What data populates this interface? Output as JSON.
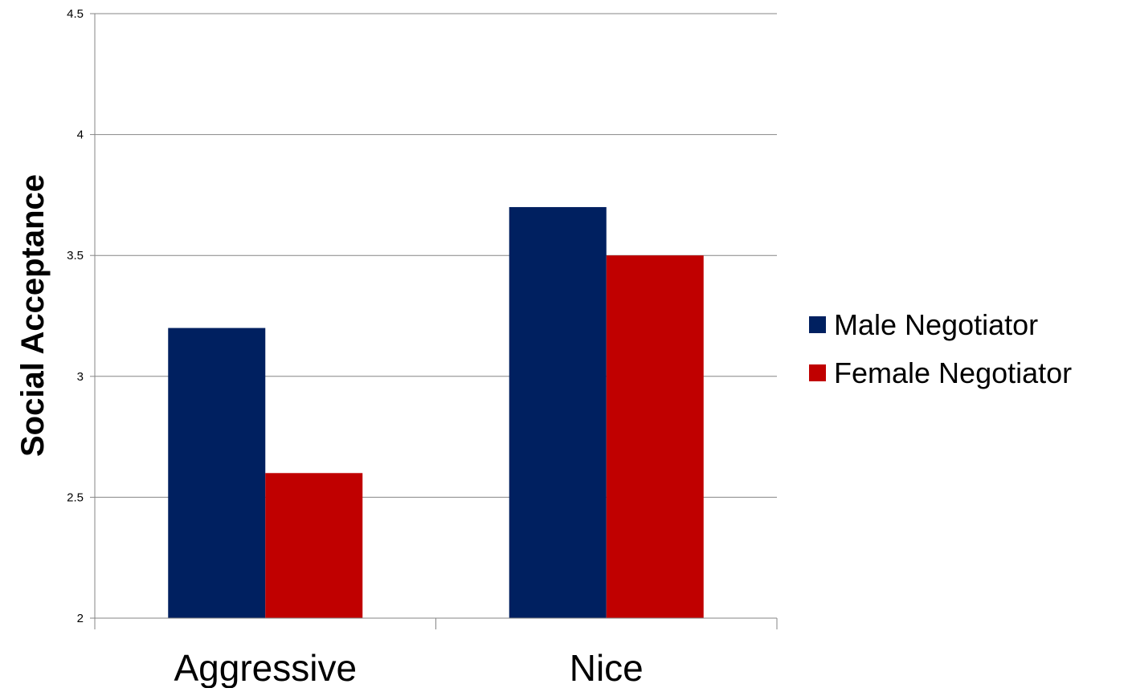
{
  "chart_data": {
    "type": "bar",
    "title": "",
    "xlabel": "",
    "ylabel": "Social Acceptance",
    "categories": [
      "Aggressive",
      "Nice"
    ],
    "series": [
      {
        "name": "Male Negotiator",
        "color": "#002060",
        "values": [
          3.2,
          3.7
        ]
      },
      {
        "name": "Female Negotiator",
        "color": "#C00000",
        "values": [
          2.6,
          3.5
        ]
      }
    ],
    "ylim": [
      2,
      4.5
    ],
    "yticks": [
      "2",
      "2.5",
      "3",
      "3.5",
      "4",
      "4.5"
    ],
    "grid": true,
    "legend_position": "right"
  }
}
